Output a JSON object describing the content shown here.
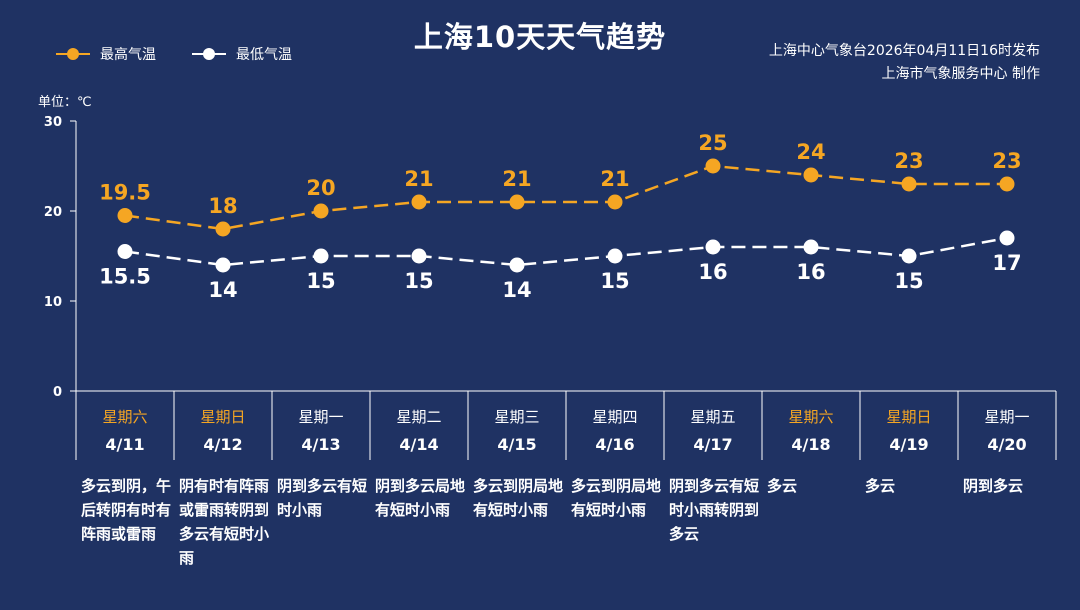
{
  "title": "上海10天天气趋势",
  "legend": {
    "high": "最高气温",
    "low": "最低气温"
  },
  "issuer": {
    "line1": "上海中心气象台2026年04月11日16时发布",
    "line2": "上海市气象服务中心  制作"
  },
  "unit_label": "单位：℃",
  "colors": {
    "background": "#1f3263",
    "high": "#f5a623",
    "low": "#ffffff",
    "weekend": "#f5a623"
  },
  "chart_data": {
    "type": "line",
    "title": "上海10天天气趋势",
    "ylabel": "单位：℃",
    "ylim": [
      0,
      30
    ],
    "yticks": [
      0,
      10,
      20,
      30
    ],
    "grid": false,
    "legend_position": "top-left",
    "categories": [
      "4/11",
      "4/12",
      "4/13",
      "4/14",
      "4/15",
      "4/16",
      "4/17",
      "4/18",
      "4/19",
      "4/20"
    ],
    "series": [
      {
        "name": "最高气温",
        "color": "#f5a623",
        "values": [
          19.5,
          18,
          20,
          21,
          21,
          21,
          25,
          24,
          23,
          23
        ]
      },
      {
        "name": "最低气温",
        "color": "#ffffff",
        "values": [
          15.5,
          14,
          15,
          15,
          14,
          15,
          16,
          16,
          15,
          17
        ]
      }
    ]
  },
  "days": [
    {
      "weekday": "星期六",
      "weekend": true,
      "date": "4/11",
      "desc": "多云到阴，午后转阴有时有阵雨或雷雨"
    },
    {
      "weekday": "星期日",
      "weekend": true,
      "date": "4/12",
      "desc": "阴有时有阵雨或雷雨转阴到多云有短时小雨"
    },
    {
      "weekday": "星期一",
      "weekend": false,
      "date": "4/13",
      "desc": "阴到多云有短时小雨"
    },
    {
      "weekday": "星期二",
      "weekend": false,
      "date": "4/14",
      "desc": "阴到多云局地有短时小雨"
    },
    {
      "weekday": "星期三",
      "weekend": false,
      "date": "4/15",
      "desc": "多云到阴局地有短时小雨"
    },
    {
      "weekday": "星期四",
      "weekend": false,
      "date": "4/16",
      "desc": "多云到阴局地有短时小雨"
    },
    {
      "weekday": "星期五",
      "weekend": false,
      "date": "4/17",
      "desc": "阴到多云有短时小雨转阴到多云"
    },
    {
      "weekday": "星期六",
      "weekend": true,
      "date": "4/18",
      "desc": "多云"
    },
    {
      "weekday": "星期日",
      "weekend": true,
      "date": "4/19",
      "desc": "多云"
    },
    {
      "weekday": "星期一",
      "weekend": false,
      "date": "4/20",
      "desc": "阴到多云"
    }
  ]
}
